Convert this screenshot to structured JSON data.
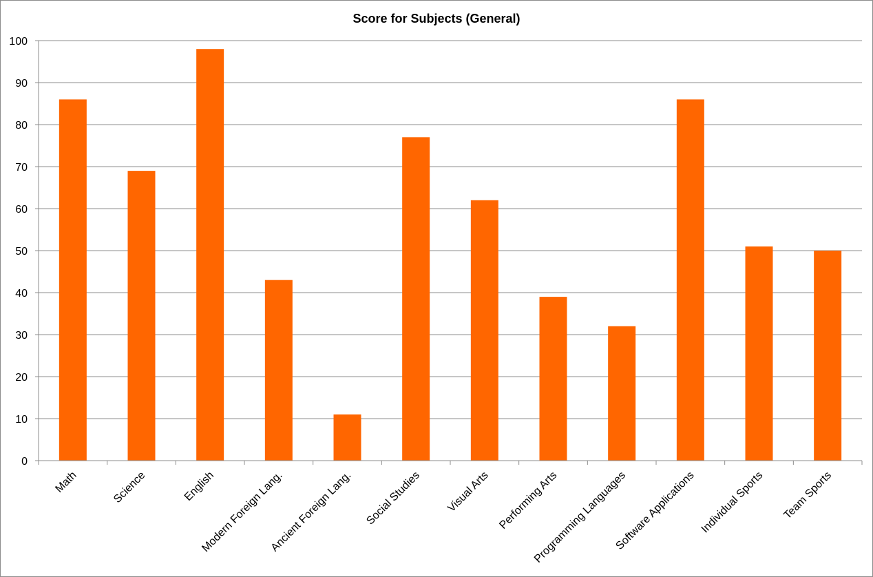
{
  "chart_data": {
    "type": "bar",
    "title": "Score for Subjects (General)",
    "categories": [
      "Math",
      "Science",
      "English",
      "Modern Foreign Lang.",
      "Ancient Foreign Lang.",
      "Social Studies",
      "Visual Arts",
      "Performing Arts",
      "Programming Languages",
      "Software Applications",
      "Individual Sports",
      "Team Sports"
    ],
    "values": [
      86,
      69,
      98,
      43,
      11,
      77,
      62,
      39,
      32,
      86,
      51,
      50
    ],
    "ylim": [
      0,
      100
    ],
    "yticks": [
      "0",
      "10",
      "20",
      "30",
      "40",
      "50",
      "60",
      "70",
      "80",
      "90",
      "100"
    ],
    "grid": true,
    "legend": "none",
    "colors": {
      "bar": "#ff6600",
      "grid": "#8c8c8c"
    }
  }
}
